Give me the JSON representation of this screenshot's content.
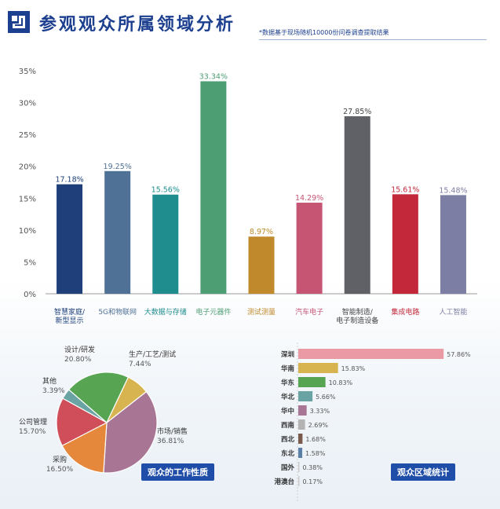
{
  "header": {
    "title": "参观观众所属领域分析",
    "note": "*数据基于现场随机10000份问卷调查提取结果"
  },
  "chart_data": [
    {
      "type": "bar",
      "categories": [
        [
          "智慧家庭/",
          "新型显示"
        ],
        [
          "5G和物联网"
        ],
        [
          "大数据与存储"
        ],
        [
          "电子元器件"
        ],
        [
          "测试测量"
        ],
        [
          "汽车电子"
        ],
        [
          "智能制造/",
          "电子制造设备"
        ],
        [
          "集成电路"
        ],
        [
          "人工智能"
        ]
      ],
      "values": [
        17.18,
        19.25,
        15.56,
        33.34,
        8.97,
        14.29,
        27.85,
        15.61,
        15.48
      ],
      "value_labels": [
        "17.18%",
        "19.25%",
        "15.56%",
        "33.34%",
        "8.97%",
        "14.29%",
        "27.85%",
        "15.61%",
        "15.48%"
      ],
      "bar_colors": [
        "#1e3f7a",
        "#4f7196",
        "#1f8c8e",
        "#4e9e74",
        "#c0892b",
        "#c65574",
        "#5f6166",
        "#c2283a",
        "#7d7ea3"
      ],
      "label_colors": [
        "#1e3f7a",
        "#4f7196",
        "#1f8c8e",
        "#4e9e74",
        "#c0892b",
        "#c65574",
        "#444444",
        "#c2283a",
        "#7d7ea3"
      ],
      "ylim": [
        0,
        35
      ],
      "yticks": [
        0,
        5,
        10,
        15,
        20,
        25,
        30,
        35
      ],
      "ytick_labels": [
        "0%",
        "5%",
        "10%",
        "15%",
        "20%",
        "25%",
        "30%",
        "35%"
      ],
      "grid": false
    },
    {
      "type": "pie",
      "tag": "观众的工作性质",
      "slices": [
        {
          "name": "市场/销售",
          "value": 36.81,
          "label": "36.81%",
          "color": "#a87594"
        },
        {
          "name": "采购",
          "value": 16.5,
          "label": "16.50%",
          "color": "#e5883c"
        },
        {
          "name": "公司管理",
          "value": 15.7,
          "label": "15.70%",
          "color": "#cf4e5a"
        },
        {
          "name": "其他",
          "value": 3.39,
          "label": "3.39%",
          "color": "#6aa3a3"
        },
        {
          "name": "设计/研发",
          "value": 20.8,
          "label": "20.80%",
          "color": "#57a553"
        },
        {
          "name": "生产/工艺/测试",
          "value": 7.44,
          "label": "7.44%",
          "color": "#d8b451"
        }
      ]
    },
    {
      "type": "bar",
      "orientation": "horizontal",
      "tag": "观众区域统计",
      "categories": [
        "深圳",
        "华南",
        "华东",
        "华北",
        "华中",
        "西南",
        "西北",
        "东北",
        "国外",
        "港澳台"
      ],
      "values": [
        57.86,
        15.83,
        10.83,
        5.66,
        3.33,
        2.69,
        1.68,
        1.58,
        0.38,
        0.17
      ],
      "value_labels": [
        "57.86%",
        "15.83%",
        "10.83%",
        "5.66%",
        "3.33%",
        "2.69%",
        "1.68%",
        "1.58%",
        "0.38%",
        "0.17%"
      ],
      "bar_colors": [
        "#ea9aa4",
        "#d8b451",
        "#57a553",
        "#6aa3a3",
        "#a87594",
        "#b3b3b3",
        "#7a5a4a",
        "#5b7fa6",
        "#cccccc",
        "#cccccc"
      ]
    }
  ]
}
